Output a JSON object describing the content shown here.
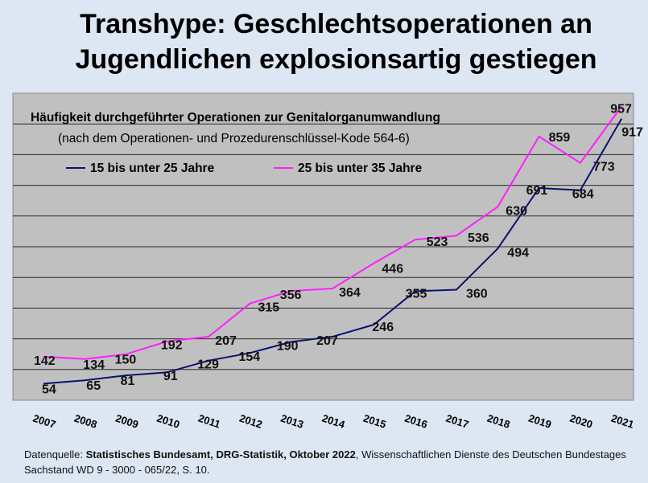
{
  "title_line1": "Transhype: Geschlechtsoperationen an",
  "title_line2": "Jugendlichen explosionsartig gestiegen",
  "source": {
    "prefix": "Datenquelle: ",
    "bold": "Statistisches Bundesamt, DRG-Statistik, Oktober 2022",
    "rest": ", Wissenschaftlichen Dienste des Deutschen Bundestages Sachstand WD 9 - 3000 - 065/22, S. 10."
  },
  "chart_data": {
    "type": "line",
    "title": "Häufigkeit durchgeführter Operationen zur Genitalorganumwandlung",
    "subtitle": "(nach dem Operationen- und Prozedurenschlüssel-Kode 564-6)",
    "categories": [
      "2007",
      "2008",
      "2009",
      "2010",
      "2011",
      "2012",
      "2013",
      "2014",
      "2015",
      "2016",
      "2017",
      "2018",
      "2019",
      "2020",
      "2021"
    ],
    "series": [
      {
        "name": "15 bis unter 25 Jahre",
        "color": "#0b1170",
        "values": [
          54,
          65,
          81,
          91,
          129,
          154,
          190,
          207,
          246,
          355,
          360,
          494,
          691,
          684,
          917
        ]
      },
      {
        "name": "25 bis unter 35 Jahre",
        "color": "#ff1fff",
        "values": [
          142,
          134,
          150,
          192,
          207,
          315,
          356,
          364,
          446,
          523,
          536,
          630,
          859,
          773,
          957
        ]
      }
    ],
    "ylim": [
      0,
      1000
    ],
    "grid": true,
    "legend_position": "top-left"
  }
}
